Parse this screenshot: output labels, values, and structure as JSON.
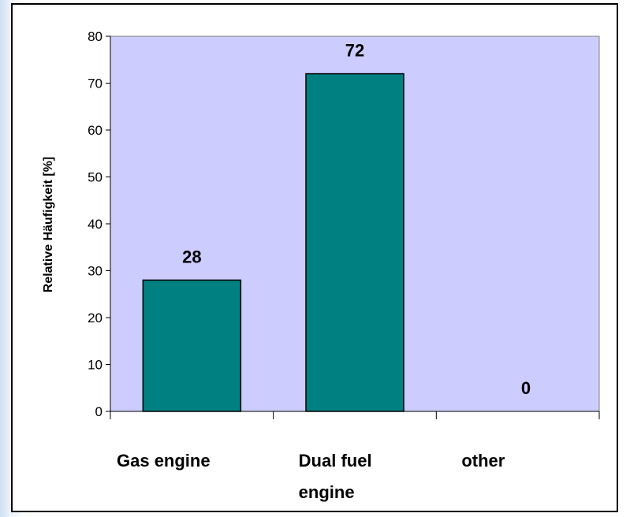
{
  "chart_data": {
    "type": "bar",
    "y_label": "Relative Häufigkeit [%]",
    "categories": [
      "Gas engine",
      "Dual fuel engine",
      "other"
    ],
    "values": [
      28,
      72,
      0
    ],
    "color": "#008080",
    "ylim": [
      0,
      80
    ],
    "yticks": [
      0,
      10,
      20,
      30,
      40,
      50,
      60,
      70,
      80
    ],
    "grid": false
  }
}
